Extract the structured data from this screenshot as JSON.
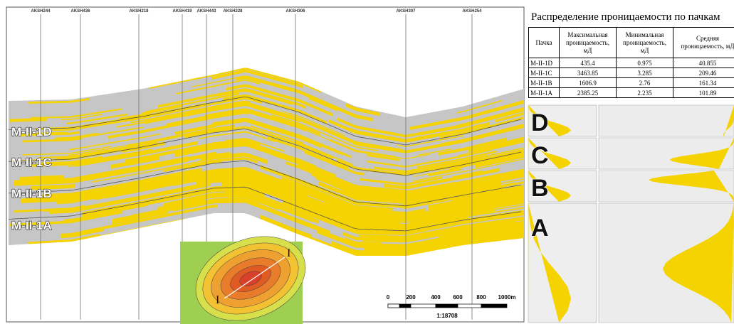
{
  "section": {
    "wells": [
      "AKSH244",
      "AKSH436",
      "AKSH218",
      "AKSH419",
      "AKSH443",
      "AKSH228",
      "AKSH306",
      "AKSH307",
      "AKSH254"
    ],
    "zones": [
      "M-II-1D",
      "M-II-1C",
      "M-II-1B",
      "M-II-1A"
    ],
    "map_labels": [
      "I",
      "I"
    ],
    "scale_labels": [
      "0",
      "200",
      "400",
      "600",
      "800",
      "1000m"
    ],
    "scale_ratio": "1:18708"
  },
  "table": {
    "title": "Распределение проницаемости по пачкам",
    "header": [
      "Пачка",
      "Максимальная проницаемость, мД",
      "Минимальная проницаемость, мД",
      "Средняя проницаемость, мД"
    ],
    "rows": [
      [
        "M-II-1D",
        435.4,
        0.975,
        40.855
      ],
      [
        "M-II-1C",
        3463.85,
        3.285,
        209.46
      ],
      [
        "M-II-1B",
        1606.9,
        2.76,
        161.34
      ],
      [
        "M-II-1A",
        2385.25,
        2.235,
        101.89
      ]
    ]
  },
  "histograms": {
    "letters": [
      "D",
      "C",
      "B",
      "A"
    ]
  }
}
